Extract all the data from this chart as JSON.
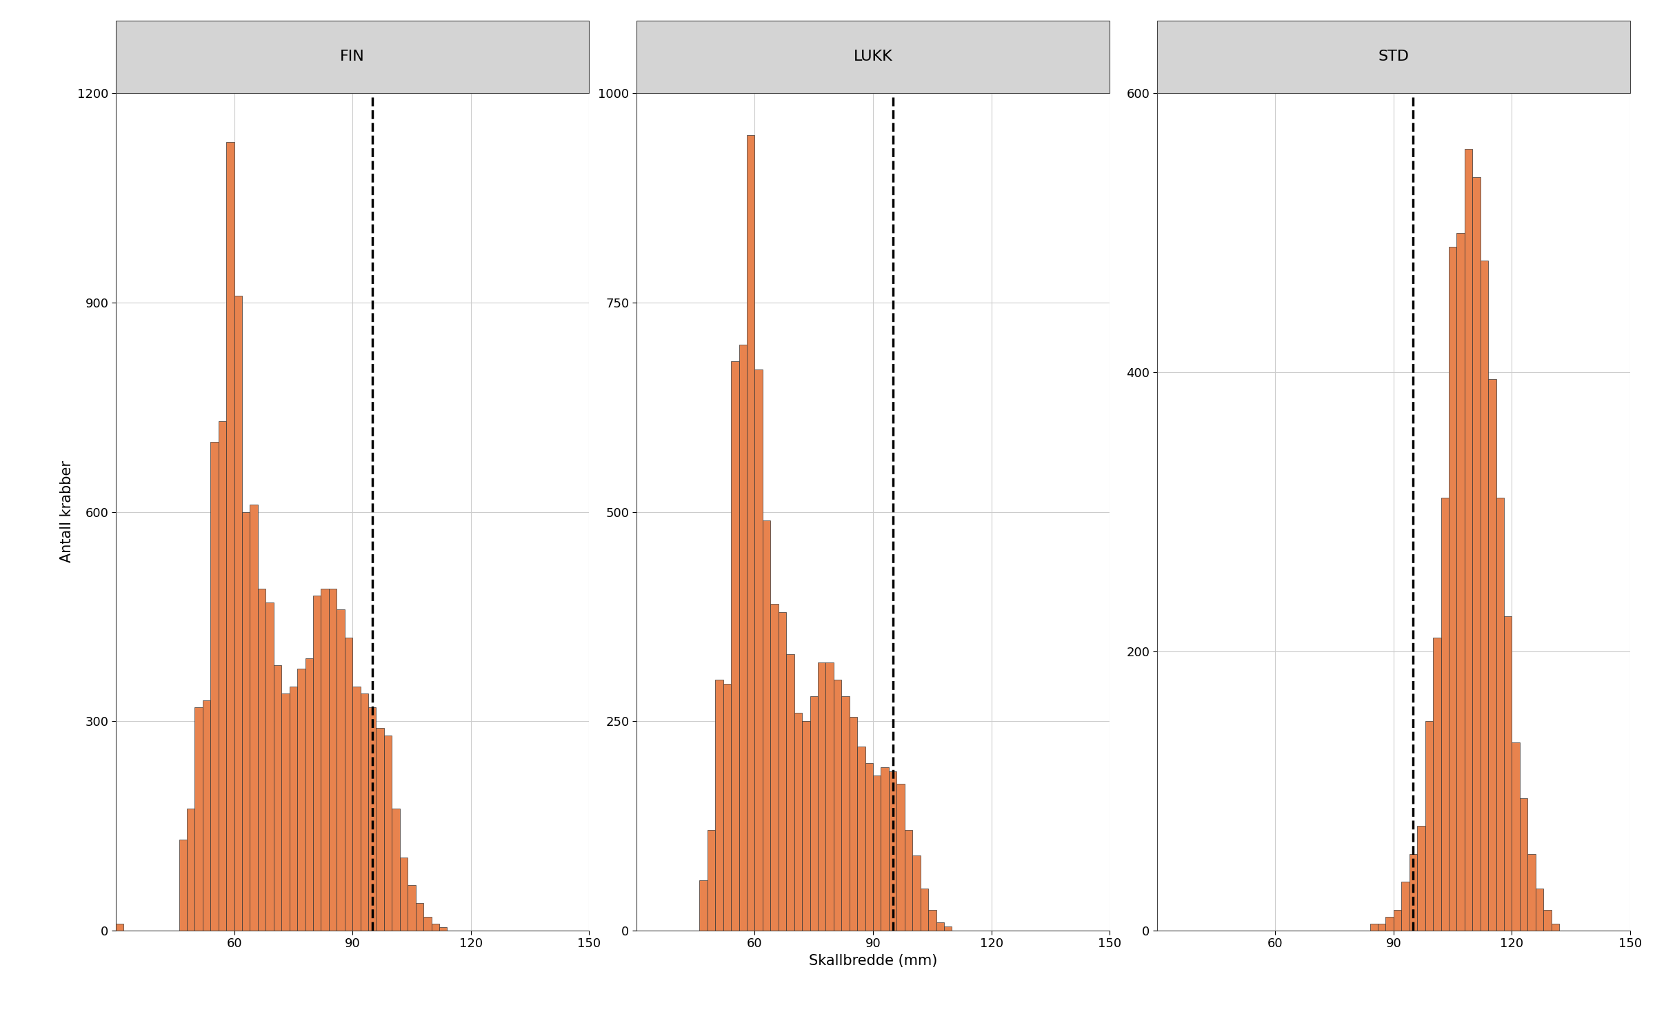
{
  "panels": [
    {
      "title": "FIN",
      "ylim": [
        0,
        1200
      ],
      "yticks": [
        0,
        300,
        600,
        900,
        1200
      ],
      "show_ylabel": true
    },
    {
      "title": "LUKK",
      "ylim": [
        0,
        1000
      ],
      "yticks": [
        0,
        250,
        500,
        750,
        1000
      ],
      "show_ylabel": false
    },
    {
      "title": "STD",
      "ylim": [
        0,
        600
      ],
      "yticks": [
        0,
        200,
        400,
        600
      ],
      "show_ylabel": false
    }
  ],
  "xmin": 30,
  "xmax": 150,
  "xticks": [
    60,
    90,
    120,
    150
  ],
  "bin_width": 2,
  "dashed_line_x": 95,
  "bar_color": "#E8834E",
  "bar_edge_color": "#333333",
  "xlabel": "Skallbredde (mm)",
  "ylabel": "Antall krabber",
  "background_color": "#ffffff",
  "panel_header_color": "#d4d4d4",
  "grid_color": "#cccccc",
  "title_fontsize": 16,
  "label_fontsize": 15,
  "tick_fontsize": 13,
  "bar_linewidth": 0.5
}
